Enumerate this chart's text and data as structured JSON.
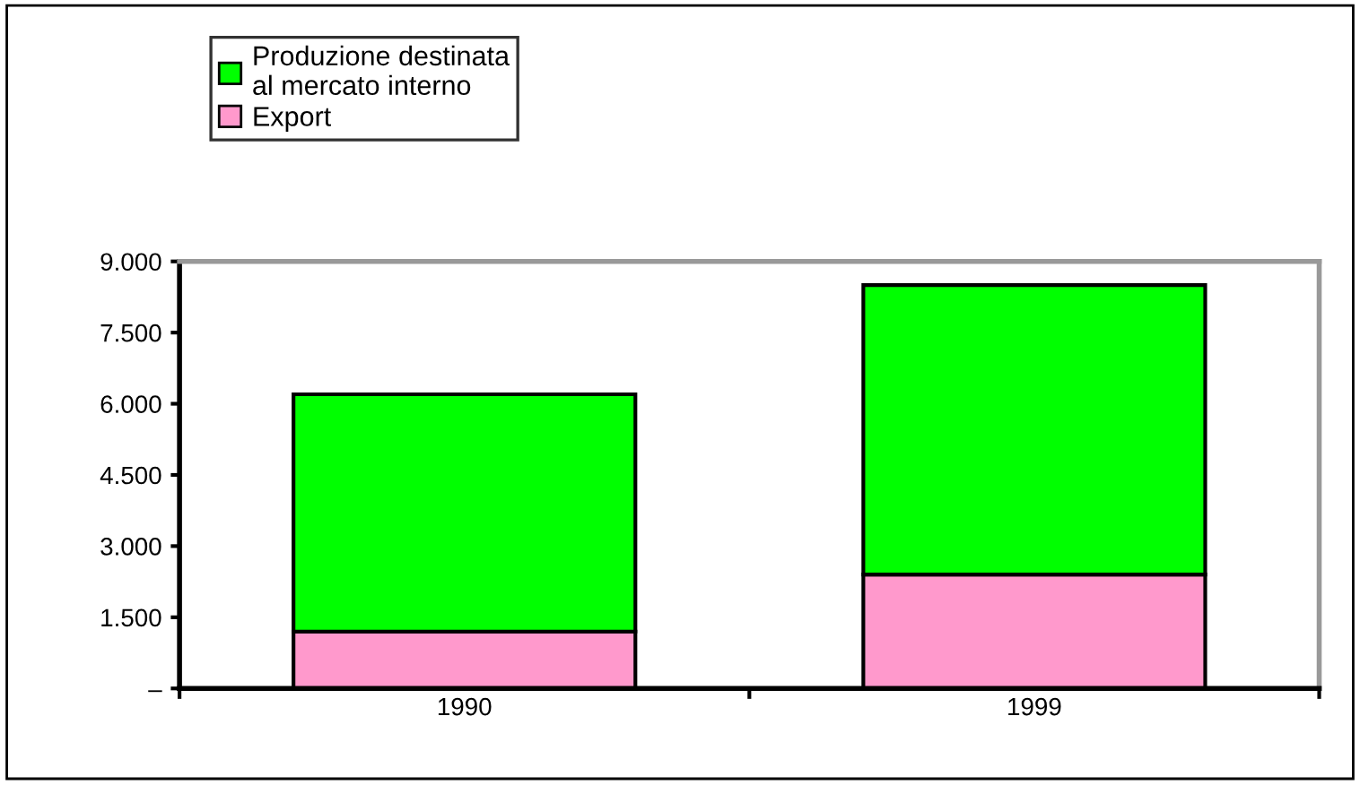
{
  "chart_data": {
    "type": "bar",
    "stacked": true,
    "categories": [
      "1990",
      "1999"
    ],
    "series": [
      {
        "name": "Export",
        "color": "#ff99cc",
        "values": [
          1200,
          2400
        ]
      },
      {
        "name": "Produzione destinata\nal mercato interno",
        "color": "#00ff00",
        "values": [
          5000,
          6100
        ]
      }
    ],
    "ylim": [
      0,
      9000
    ],
    "yticks": [
      {
        "value": 0,
        "label": "–"
      },
      {
        "value": 1500,
        "label": "1.500"
      },
      {
        "value": 3000,
        "label": "3.000"
      },
      {
        "value": 4500,
        "label": "4.500"
      },
      {
        "value": 6000,
        "label": "6.000"
      },
      {
        "value": 7500,
        "label": "7.500"
      },
      {
        "value": 9000,
        "label": "9.000"
      }
    ],
    "legend": "top",
    "grid": false
  }
}
